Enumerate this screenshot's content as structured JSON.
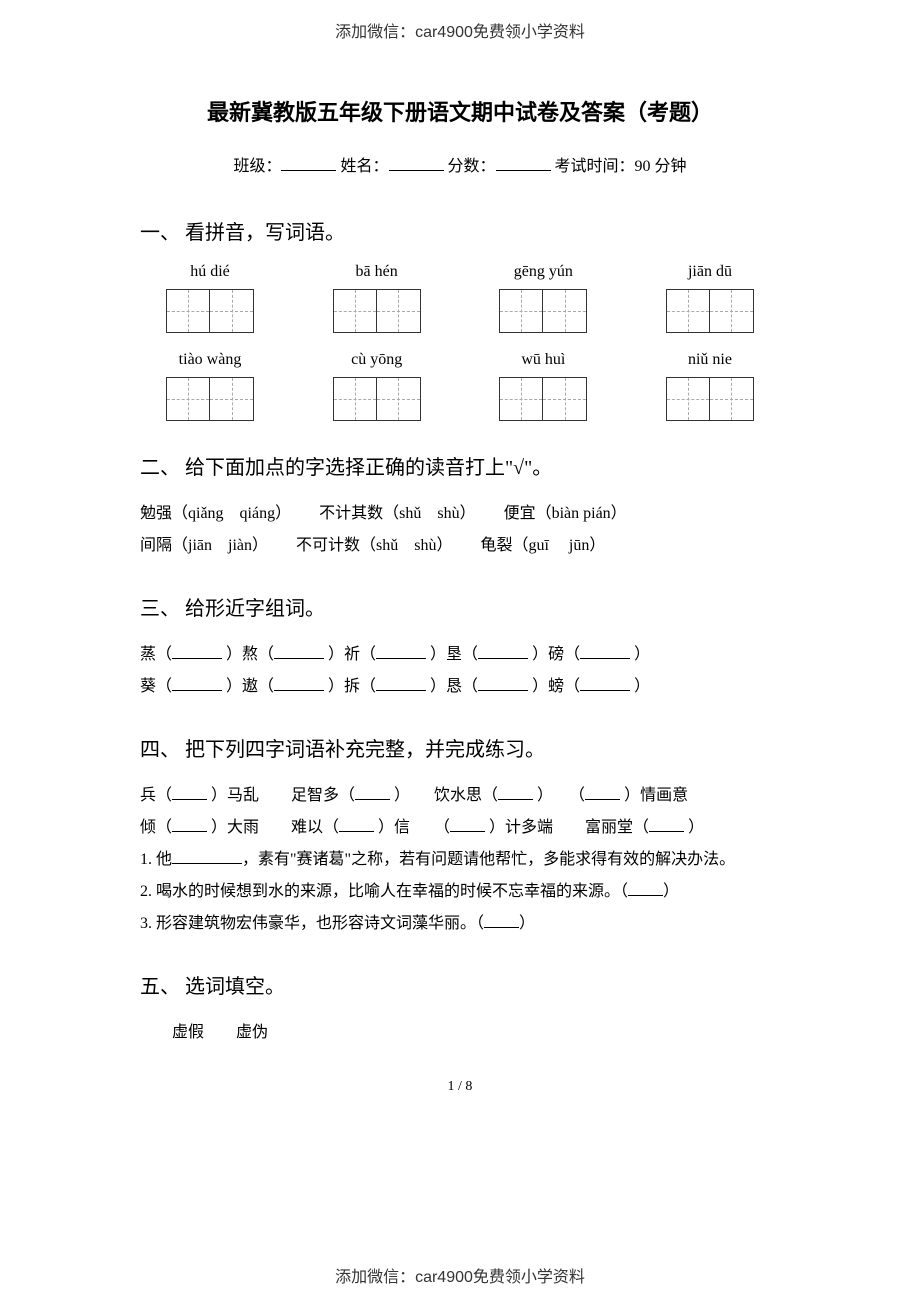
{
  "watermark_top": "添加微信：car4900免费领小学资料",
  "watermark_bottom": "添加微信：car4900免费领小学资料",
  "title": "最新冀教版五年级下册语文期中试卷及答案（考题）",
  "meta": {
    "class_label": "班级：",
    "name_label": "姓名：",
    "score_label": "分数：",
    "time_label": "考试时间：90 分钟"
  },
  "section1": {
    "heading": "一、 看拼音，写词语。",
    "row1": [
      "hú dié",
      "bā hén",
      "gēng yún",
      "jiān dū"
    ],
    "row2": [
      "tiào wàng",
      "cù yōng",
      "wū huì",
      "niǔ nie"
    ]
  },
  "section2": {
    "heading": "二、 给下面加点的字选择正确的读音打上\"√\"。",
    "items": [
      [
        "勉强（qiǎng　qiáng）",
        "不计其数（shǔ　shù）",
        "便宜（biàn  pián）"
      ],
      [
        "间隔（jiān　jiàn）",
        "不可计数（shǔ　shù）",
        "龟裂（guī　 jūn）"
      ]
    ]
  },
  "section3": {
    "heading": "三、 给形近字组词。",
    "row1": [
      "蒸（",
      "）熬（",
      "）祈（",
      "）垦（",
      "）磅（",
      "）"
    ],
    "row2": [
      "葵（",
      "）遨（",
      "）拆（",
      "）恳（",
      "）螃（",
      "）"
    ]
  },
  "section4": {
    "heading": "四、 把下列四字词语补充完整，并完成练习。",
    "line1": [
      "兵（",
      "）马乱　　足智多（",
      "）　　饮水思（",
      "）　　（",
      "）情画意"
    ],
    "line2": [
      "倾（",
      "）大雨　　难以（",
      "）信　　（",
      "）计多端　　富丽堂（",
      "）"
    ],
    "q1_prefix": "1. 他",
    "q1_suffix": "，素有\"赛诸葛\"之称，若有问题请他帮忙，多能求得有效的解决办法。",
    "q2": "2. 喝水的时候想到水的来源，比喻人在幸福的时候不忘幸福的来源。（",
    "q2_end": "）",
    "q3": "3. 形容建筑物宏伟豪华，也形容诗文词藻华丽。（",
    "q3_end": "）"
  },
  "section5": {
    "heading": "五、 选词填空。",
    "words": "　　虚假　　虚伪"
  },
  "page_number": "1 / 8"
}
